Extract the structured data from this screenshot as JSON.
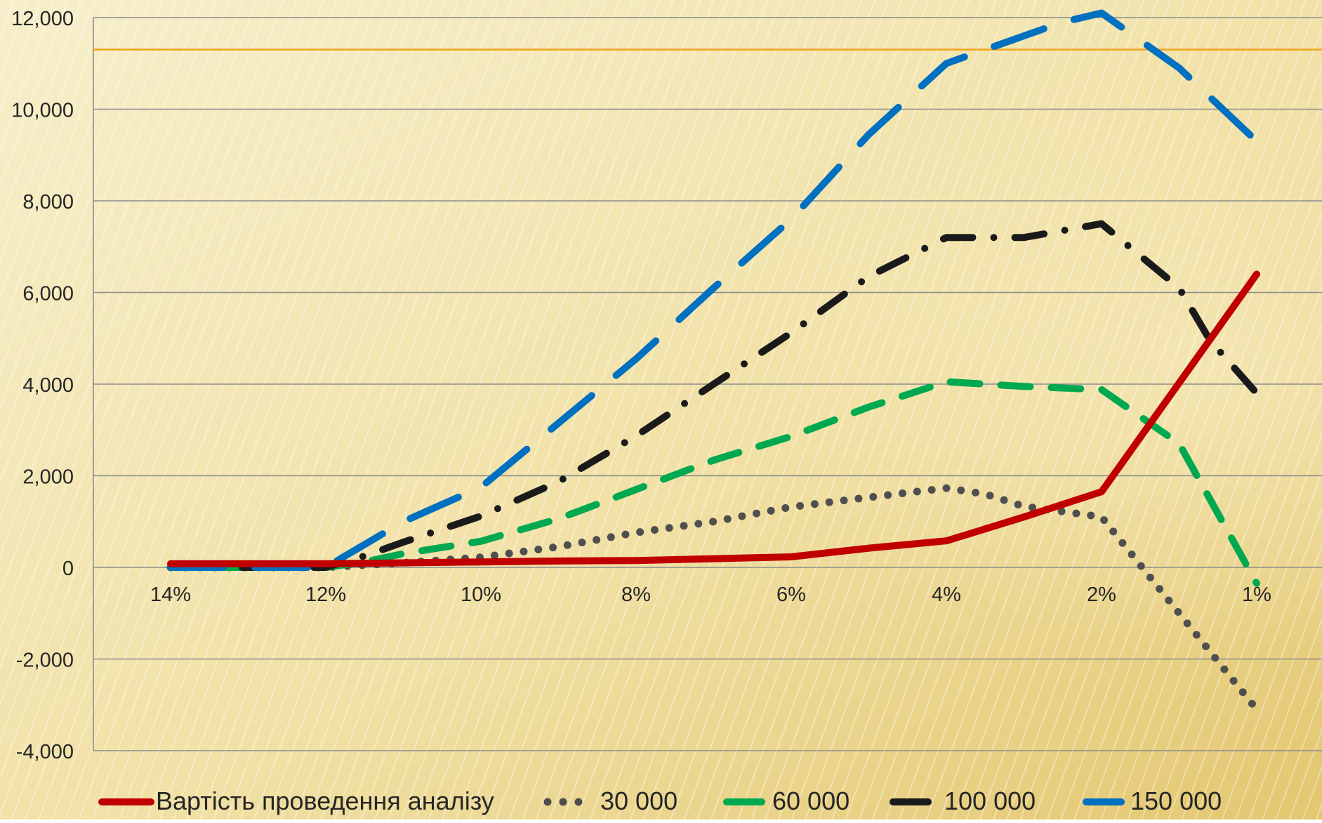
{
  "chart_data": {
    "type": "line",
    "title": "",
    "xlabel": "",
    "ylabel": "",
    "categories": [
      "14%",
      "12%",
      "10%",
      "8%",
      "6%",
      "4%",
      "2%",
      "1%"
    ],
    "ylim": [
      -4000,
      12000
    ],
    "yticks": [
      12000,
      10000,
      8000,
      6000,
      4000,
      2000,
      0,
      -2000,
      -4000
    ],
    "ytick_labels": [
      "12,000",
      "10,000",
      "8,000",
      "6,000",
      "4,000",
      "2,000",
      "0",
      "-2,000",
      "-4,000"
    ],
    "grid": true,
    "legend_position": "bottom",
    "reference_line": {
      "value": 11300,
      "color": "#F4A21C"
    },
    "series": [
      {
        "name": "Вартість проведення аналізу",
        "style": "solid",
        "color": "#C00000",
        "points": [
          [
            14,
            80
          ],
          [
            13,
            80
          ],
          [
            12,
            80
          ],
          [
            11,
            100
          ],
          [
            10,
            120
          ],
          [
            9,
            140
          ],
          [
            8,
            150
          ],
          [
            7,
            190
          ],
          [
            6,
            230
          ],
          [
            5,
            420
          ],
          [
            4,
            580
          ],
          [
            3,
            1100
          ],
          [
            2,
            1650
          ],
          [
            1,
            6400
          ]
        ]
      },
      {
        "name": "30 000",
        "style": "dot",
        "color": "#4F4F4F",
        "points": [
          [
            14,
            0
          ],
          [
            13,
            0
          ],
          [
            12,
            0
          ],
          [
            11.5,
            50
          ],
          [
            11,
            100
          ],
          [
            10,
            220
          ],
          [
            9,
            450
          ],
          [
            8,
            760
          ],
          [
            7,
            1000
          ],
          [
            6,
            1320
          ],
          [
            5,
            1530
          ],
          [
            4,
            1730
          ],
          [
            3.5,
            1600
          ],
          [
            3,
            1330
          ],
          [
            2.5,
            1220
          ],
          [
            2,
            1100
          ],
          [
            1.5,
            -1000
          ],
          [
            1,
            -3100
          ]
        ]
      },
      {
        "name": "60 000",
        "style": "dash",
        "color": "#00A850",
        "points": [
          [
            14,
            0
          ],
          [
            13,
            0
          ],
          [
            12,
            0
          ],
          [
            11.5,
            120
          ],
          [
            11,
            300
          ],
          [
            10,
            570
          ],
          [
            9,
            1060
          ],
          [
            8,
            1700
          ],
          [
            7,
            2340
          ],
          [
            6,
            2860
          ],
          [
            5,
            3500
          ],
          [
            4,
            4050
          ],
          [
            3,
            3950
          ],
          [
            2,
            3880
          ],
          [
            1.5,
            2700
          ],
          [
            1,
            -350
          ]
        ]
      },
      {
        "name": "100 000",
        "style": "dashdot",
        "color": "#1A1A1A",
        "points": [
          [
            14,
            0
          ],
          [
            13,
            0
          ],
          [
            12,
            0
          ],
          [
            11.5,
            250
          ],
          [
            11,
            550
          ],
          [
            10,
            1120
          ],
          [
            9,
            1870
          ],
          [
            8,
            2870
          ],
          [
            7,
            4000
          ],
          [
            6,
            5120
          ],
          [
            5,
            6350
          ],
          [
            4,
            7200
          ],
          [
            3,
            7200
          ],
          [
            2,
            7500
          ],
          [
            1.5,
            6100
          ],
          [
            1.3,
            4950
          ],
          [
            1,
            3800
          ]
        ]
      },
      {
        "name": "150 000",
        "style": "longdash",
        "color": "#0070C0",
        "points": [
          [
            14,
            0
          ],
          [
            13,
            0
          ],
          [
            12,
            0
          ],
          [
            11.5,
            500
          ],
          [
            11,
            1000
          ],
          [
            10,
            1750
          ],
          [
            9,
            3150
          ],
          [
            8,
            4550
          ],
          [
            7,
            6100
          ],
          [
            6,
            7600
          ],
          [
            5,
            9450
          ],
          [
            4,
            11000
          ],
          [
            3,
            11600
          ],
          [
            2.5,
            11900
          ],
          [
            2,
            12100
          ],
          [
            1.5,
            10900
          ],
          [
            1,
            9300
          ]
        ]
      }
    ]
  }
}
